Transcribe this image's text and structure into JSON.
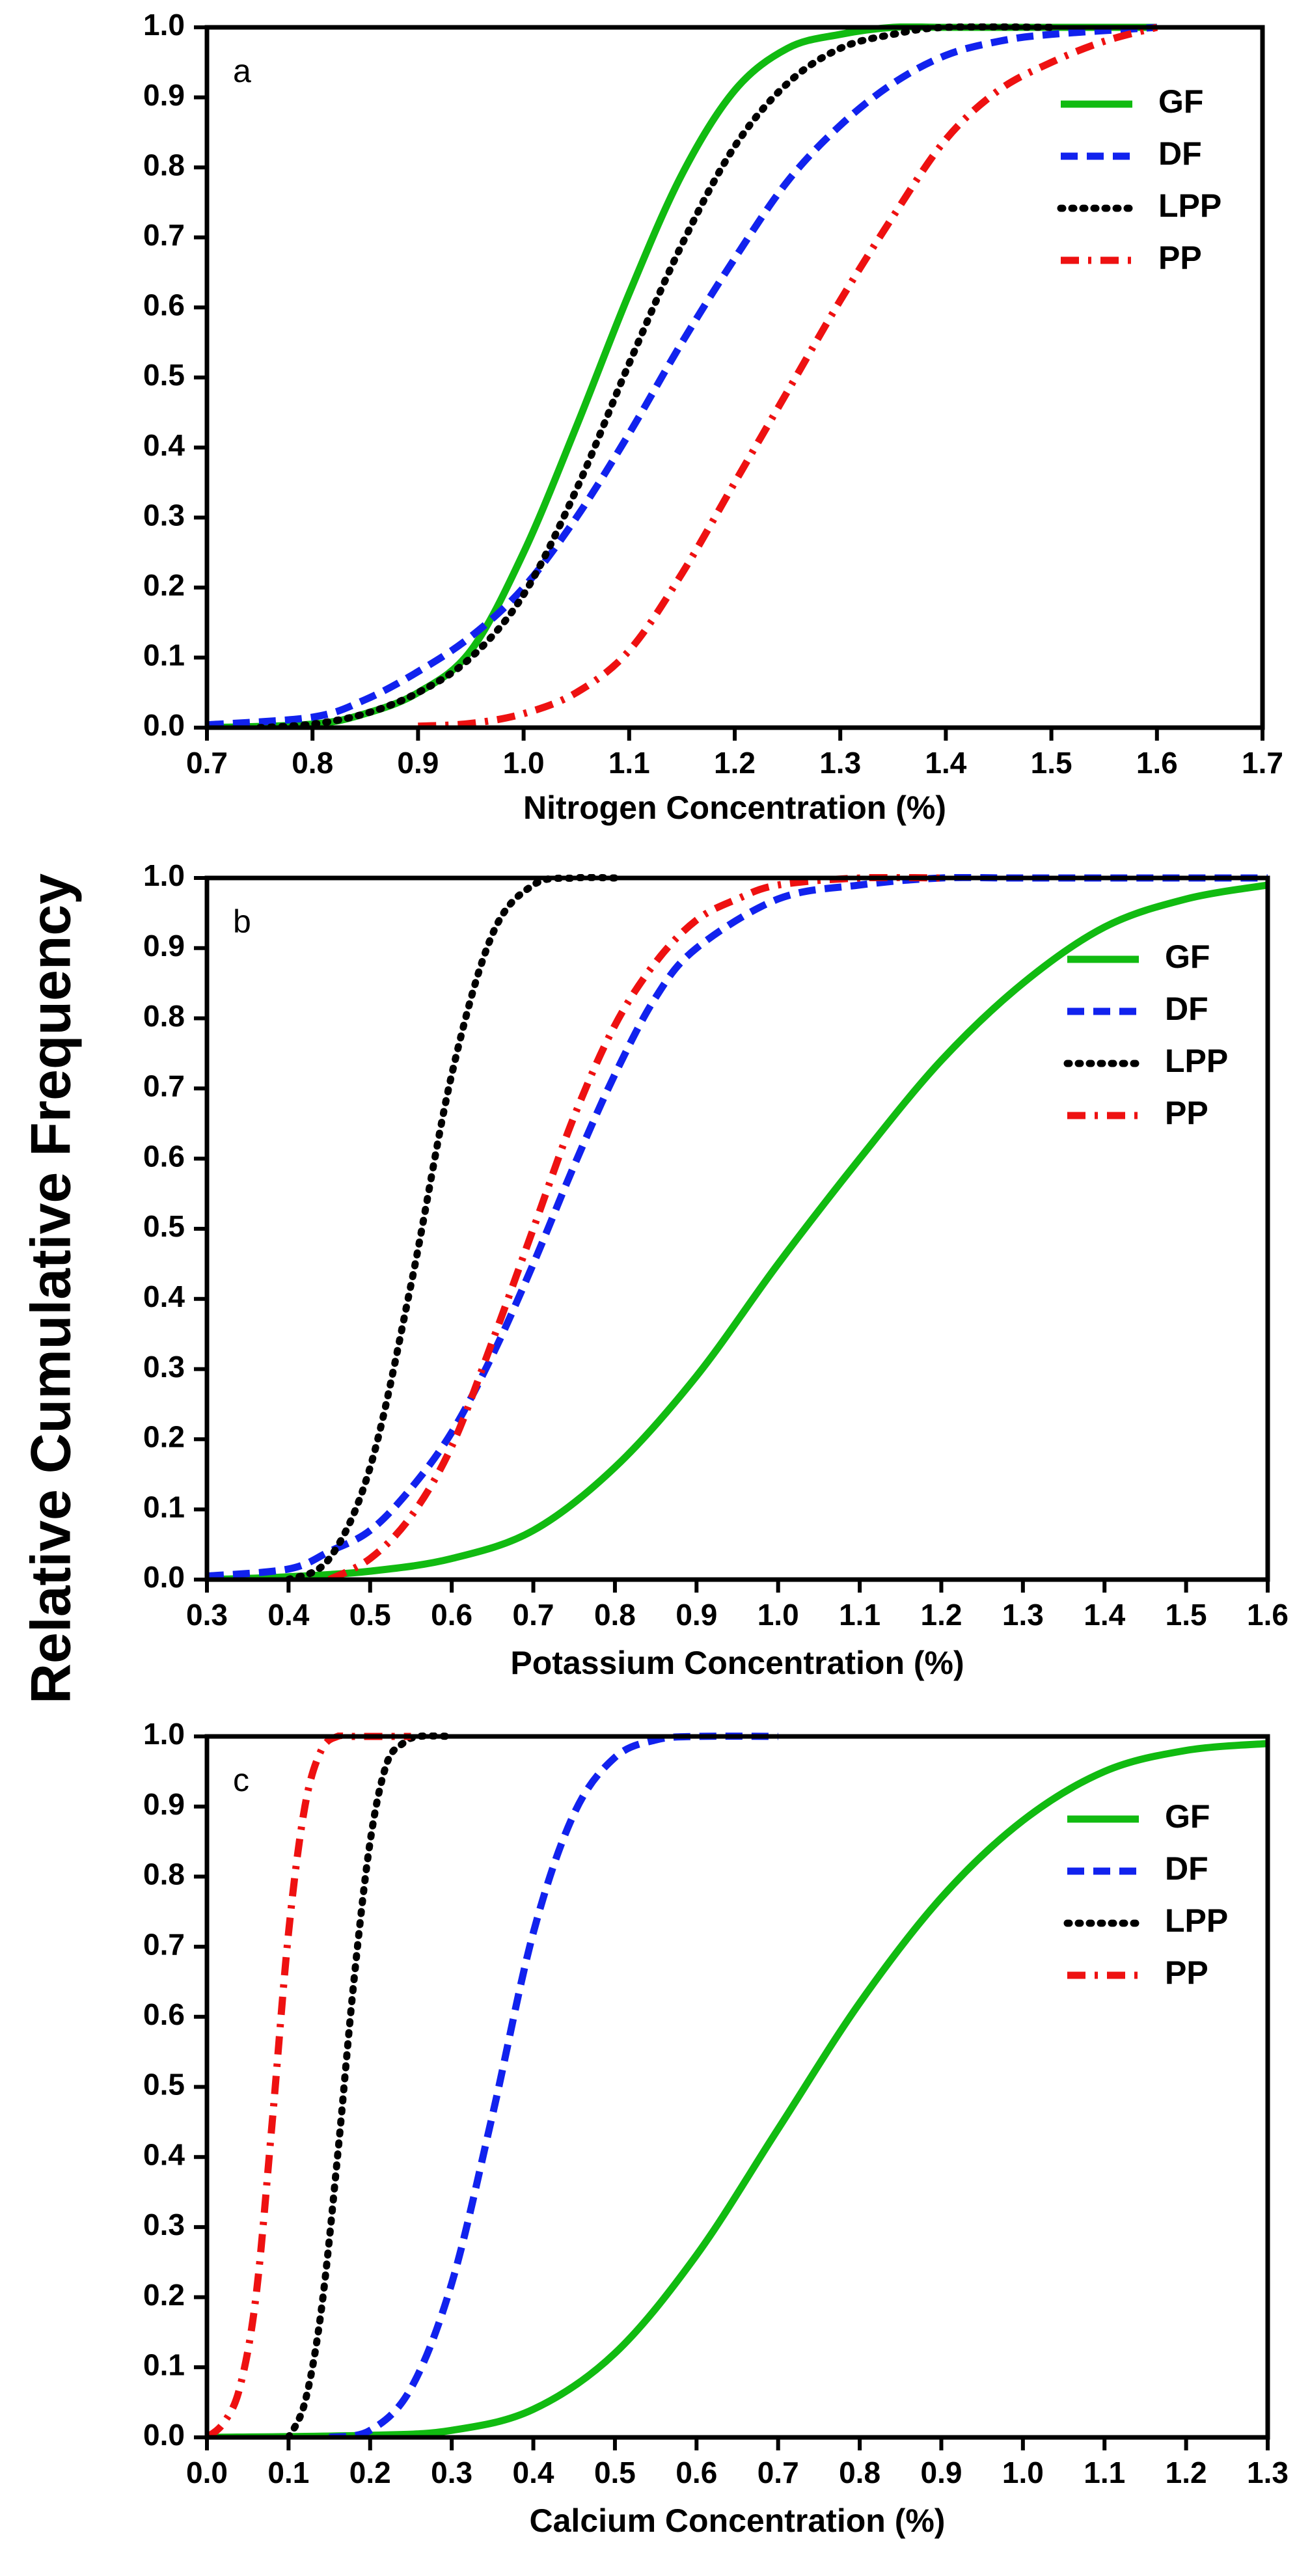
{
  "figure": {
    "shared_ylabel": "Relative Cumulative Frequency"
  },
  "styles": {
    "GF": {
      "color": "#11bb11",
      "dash": "solid"
    },
    "DF": {
      "color": "#1122ee",
      "dash": "dashed"
    },
    "LPP": {
      "color": "#000000",
      "dash": "dotted"
    },
    "PP": {
      "color": "#ee1111",
      "dash": "dashdot"
    }
  },
  "chart_data": [
    {
      "type": "line",
      "panel_letter": "a",
      "title": "",
      "xlabel": "Nitrogen Concentration (%)",
      "ylabel": "Relative Cumulative Frequency",
      "xlim": [
        0.7,
        1.7
      ],
      "ylim": [
        0.0,
        1.0
      ],
      "xticks": [
        "0.7",
        "0.8",
        "0.9",
        "1.0",
        "1.1",
        "1.2",
        "1.3",
        "1.4",
        "1.5",
        "1.6",
        "1.7"
      ],
      "yticks": [
        "0.0",
        "0.1",
        "0.2",
        "0.3",
        "0.4",
        "0.5",
        "0.6",
        "0.7",
        "0.8",
        "0.9",
        "1.0"
      ],
      "legend_position": "top-right",
      "series": [
        {
          "name": "GF",
          "x": [
            0.7,
            0.8,
            0.85,
            0.9,
            0.95,
            1.0,
            1.05,
            1.1,
            1.15,
            1.2,
            1.25,
            1.3,
            1.35,
            1.4,
            1.5,
            1.6
          ],
          "y": [
            0.0,
            0.005,
            0.02,
            0.05,
            0.11,
            0.25,
            0.43,
            0.62,
            0.79,
            0.91,
            0.97,
            0.99,
            1.0,
            1.0,
            1.0,
            1.0
          ]
        },
        {
          "name": "DF",
          "x": [
            0.7,
            0.8,
            0.85,
            0.9,
            0.95,
            1.0,
            1.05,
            1.1,
            1.15,
            1.2,
            1.25,
            1.3,
            1.35,
            1.4,
            1.45,
            1.5,
            1.6
          ],
          "y": [
            0.004,
            0.015,
            0.04,
            0.08,
            0.13,
            0.2,
            0.3,
            0.42,
            0.55,
            0.67,
            0.78,
            0.86,
            0.92,
            0.96,
            0.98,
            0.99,
            1.0
          ]
        },
        {
          "name": "LPP",
          "x": [
            0.75,
            0.8,
            0.85,
            0.9,
            0.95,
            1.0,
            1.05,
            1.1,
            1.15,
            1.2,
            1.25,
            1.3,
            1.35,
            1.4,
            1.5
          ],
          "y": [
            0.0,
            0.005,
            0.02,
            0.05,
            0.1,
            0.19,
            0.34,
            0.52,
            0.69,
            0.83,
            0.92,
            0.97,
            0.99,
            1.0,
            1.0
          ]
        },
        {
          "name": "PP",
          "x": [
            0.9,
            0.95,
            1.0,
            1.05,
            1.1,
            1.15,
            1.2,
            1.25,
            1.3,
            1.35,
            1.4,
            1.45,
            1.5,
            1.55,
            1.6
          ],
          "y": [
            0.002,
            0.006,
            0.02,
            0.05,
            0.11,
            0.22,
            0.35,
            0.48,
            0.61,
            0.73,
            0.84,
            0.91,
            0.95,
            0.98,
            1.0
          ]
        }
      ]
    },
    {
      "type": "line",
      "panel_letter": "b",
      "title": "",
      "xlabel": "Potassium Concentration (%)",
      "ylabel": "Relative Cumulative Frequency",
      "xlim": [
        0.3,
        1.6
      ],
      "ylim": [
        0.0,
        1.0
      ],
      "xticks": [
        "0.3",
        "0.4",
        "0.5",
        "0.6",
        "0.7",
        "0.8",
        "0.9",
        "1.0",
        "1.1",
        "1.2",
        "1.3",
        "1.4",
        "1.5",
        "1.6"
      ],
      "yticks": [
        "0.0",
        "0.1",
        "0.2",
        "0.3",
        "0.4",
        "0.5",
        "0.6",
        "0.7",
        "0.8",
        "0.9",
        "1.0"
      ],
      "legend_position": "top-right",
      "series": [
        {
          "name": "GF",
          "x": [
            0.3,
            0.4,
            0.5,
            0.6,
            0.7,
            0.8,
            0.9,
            1.0,
            1.1,
            1.2,
            1.3,
            1.4,
            1.5,
            1.6
          ],
          "y": [
            0.0,
            0.004,
            0.012,
            0.03,
            0.07,
            0.16,
            0.29,
            0.45,
            0.6,
            0.74,
            0.85,
            0.93,
            0.97,
            0.99
          ]
        },
        {
          "name": "DF",
          "x": [
            0.3,
            0.4,
            0.45,
            0.5,
            0.55,
            0.6,
            0.65,
            0.7,
            0.75,
            0.8,
            0.85,
            0.9,
            1.0,
            1.1,
            1.2,
            1.3,
            1.6
          ],
          "y": [
            0.005,
            0.015,
            0.04,
            0.07,
            0.13,
            0.21,
            0.32,
            0.45,
            0.59,
            0.72,
            0.83,
            0.9,
            0.97,
            0.99,
            1.0,
            1.0,
            1.0
          ]
        },
        {
          "name": "LPP",
          "x": [
            0.4,
            0.45,
            0.5,
            0.55,
            0.6,
            0.65,
            0.7,
            0.75,
            0.8
          ],
          "y": [
            0.0,
            0.03,
            0.16,
            0.42,
            0.72,
            0.92,
            0.99,
            1.0,
            1.0
          ]
        },
        {
          "name": "PP",
          "x": [
            0.45,
            0.5,
            0.55,
            0.6,
            0.65,
            0.7,
            0.75,
            0.8,
            0.85,
            0.9,
            0.95,
            1.0,
            1.1,
            1.2
          ],
          "y": [
            0.0,
            0.03,
            0.09,
            0.19,
            0.34,
            0.5,
            0.66,
            0.79,
            0.88,
            0.94,
            0.97,
            0.99,
            1.0,
            1.0
          ]
        }
      ]
    },
    {
      "type": "line",
      "panel_letter": "c",
      "title": "",
      "xlabel": "Calcium Concentration (%)",
      "ylabel": "Relative Cumulative Frequency",
      "xlim": [
        0.0,
        1.3
      ],
      "ylim": [
        0.0,
        1.0
      ],
      "xticks": [
        "0.0",
        "0.1",
        "0.2",
        "0.3",
        "0.4",
        "0.5",
        "0.6",
        "0.7",
        "0.8",
        "0.9",
        "1.0",
        "1.1",
        "1.2",
        "1.3"
      ],
      "yticks": [
        "0.0",
        "0.1",
        "0.2",
        "0.3",
        "0.4",
        "0.5",
        "0.6",
        "0.7",
        "0.8",
        "0.9",
        "1.0"
      ],
      "legend_position": "top-right",
      "series": [
        {
          "name": "GF",
          "x": [
            0.0,
            0.2,
            0.3,
            0.4,
            0.5,
            0.6,
            0.7,
            0.8,
            0.9,
            1.0,
            1.1,
            1.2,
            1.3
          ],
          "y": [
            0.0,
            0.003,
            0.01,
            0.04,
            0.12,
            0.26,
            0.44,
            0.62,
            0.77,
            0.88,
            0.95,
            0.98,
            0.99
          ]
        },
        {
          "name": "DF",
          "x": [
            0.15,
            0.2,
            0.25,
            0.3,
            0.35,
            0.4,
            0.45,
            0.5,
            0.55,
            0.6,
            0.7
          ],
          "y": [
            0.0,
            0.01,
            0.07,
            0.22,
            0.46,
            0.72,
            0.89,
            0.97,
            0.995,
            1.0,
            1.0
          ]
        },
        {
          "name": "LPP",
          "x": [
            0.1,
            0.12,
            0.14,
            0.16,
            0.18,
            0.2,
            0.22,
            0.24,
            0.26,
            0.3
          ],
          "y": [
            0.0,
            0.05,
            0.18,
            0.4,
            0.65,
            0.85,
            0.96,
            0.99,
            1.0,
            1.0
          ]
        },
        {
          "name": "PP",
          "x": [
            0.0,
            0.02,
            0.04,
            0.06,
            0.08,
            0.1,
            0.12,
            0.14,
            0.16,
            0.18,
            0.25
          ],
          "y": [
            0.0,
            0.02,
            0.07,
            0.2,
            0.45,
            0.72,
            0.9,
            0.98,
            1.0,
            1.0,
            1.0
          ]
        }
      ]
    }
  ]
}
